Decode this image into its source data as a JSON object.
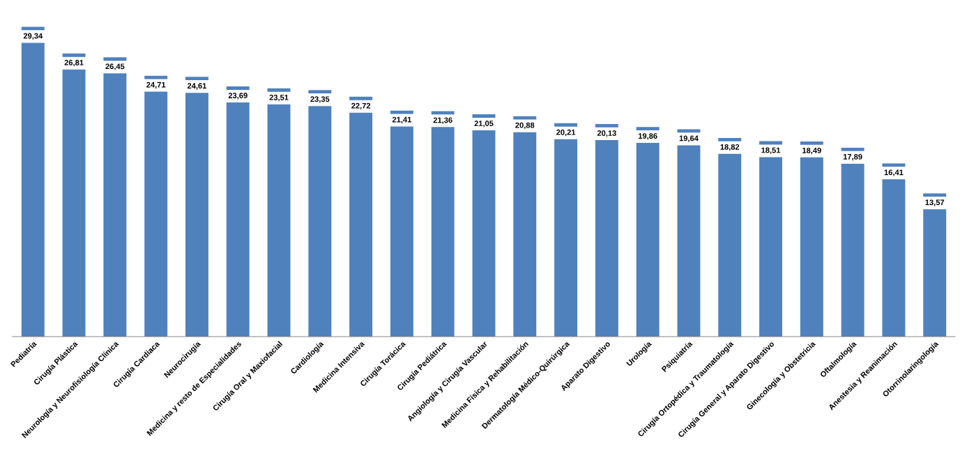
{
  "chart_data": {
    "type": "bar",
    "categories": [
      "Pediatría",
      "Cirugía Plástica",
      "Neurología y Neurofisiología Clínica",
      "Cirugía Cardiaca",
      "Neurocirugía",
      "Medicina y resto de Especialidades",
      "Cirugía Oral y Maxiofacial",
      "Cardiología",
      "Medicina Intensiva",
      "Cirugía Torácica",
      "Cirugía Pediátrica",
      "Angiología y Cirugía Vascular",
      "Medicina Física y Rehabilitación",
      "Dermatología Médico-Quirúrgica",
      "Aparato Digestivo",
      "Urología",
      "Psiquiatría",
      "Cirugía Ortopédica y Traumatología",
      "Cirugía General y Aparato Digestivo",
      "Ginecología y Obstetricia",
      "Oftalmología",
      "Anestesia y Reanimación",
      "Otorrinolaringología"
    ],
    "values": [
      29.34,
      26.81,
      26.45,
      24.71,
      24.61,
      23.69,
      23.51,
      23.35,
      22.72,
      21.41,
      21.36,
      21.05,
      20.88,
      20.21,
      20.13,
      19.86,
      19.64,
      18.82,
      18.51,
      18.49,
      17.89,
      16.41,
      13.57
    ],
    "value_labels": [
      "29,34",
      "26,81",
      "26,45",
      "24,71",
      "24,61",
      "23,69",
      "23,51",
      "23,35",
      "22,72",
      "21,41",
      "21,36",
      "21,05",
      "20,88",
      "20,21",
      "20,13",
      "19,86",
      "19,64",
      "18,82",
      "18,51",
      "18,49",
      "17,89",
      "16,41",
      "13,57"
    ],
    "color": "#4f81bd",
    "grid": false,
    "legend": false,
    "tick_labels": "x"
  }
}
